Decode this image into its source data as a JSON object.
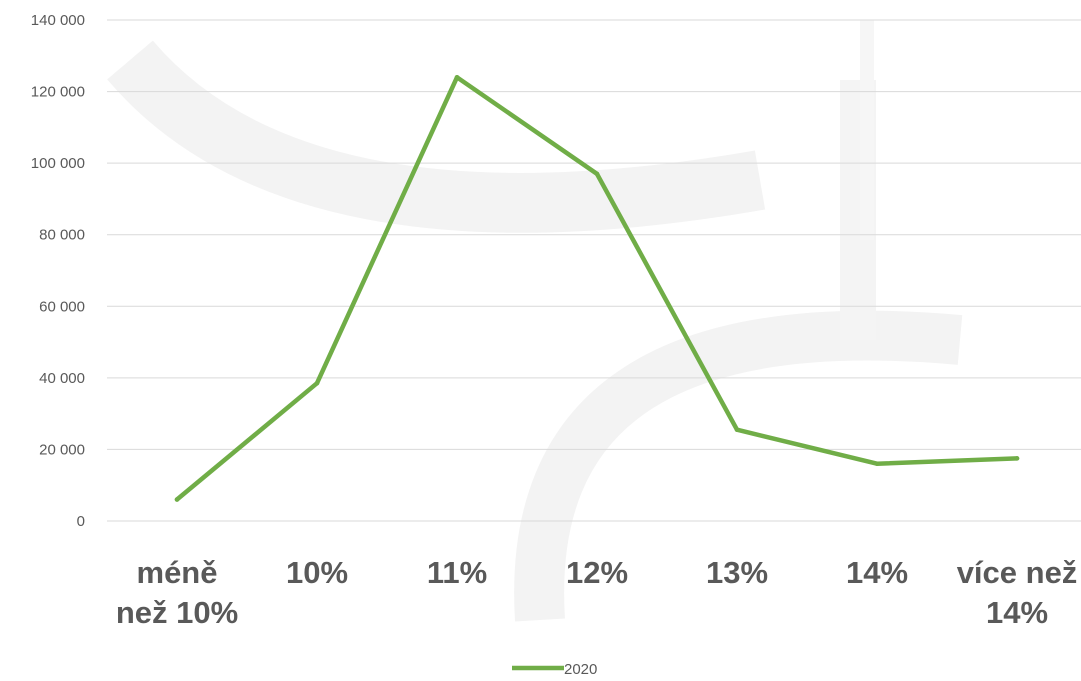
{
  "chart_data": {
    "type": "line",
    "categories": [
      "méně než 10%",
      "10%",
      "11%",
      "12%",
      "13%",
      "14%",
      "více než 14%"
    ],
    "category_lines": [
      [
        "méně",
        "než 10%"
      ],
      [
        "10%"
      ],
      [
        "11%"
      ],
      [
        "12%"
      ],
      [
        "13%"
      ],
      [
        "14%"
      ],
      [
        "více než",
        "14%"
      ]
    ],
    "series": [
      {
        "name": "2020",
        "values": [
          6000,
          38500,
          124000,
          97000,
          25500,
          16000,
          17500
        ]
      }
    ],
    "ylim": [
      0,
      140000
    ],
    "y_ticks": [
      0,
      20000,
      40000,
      60000,
      80000,
      100000,
      120000,
      140000
    ],
    "y_tick_labels": [
      "0",
      "20 000",
      "40 000",
      "60 000",
      "80 000",
      "100 000",
      "120 000",
      "140 000"
    ],
    "grid": true,
    "legend_position": "bottom",
    "colors": {
      "series": "#70ad47",
      "grid": "#d9d9d9",
      "text": "#595959"
    }
  }
}
